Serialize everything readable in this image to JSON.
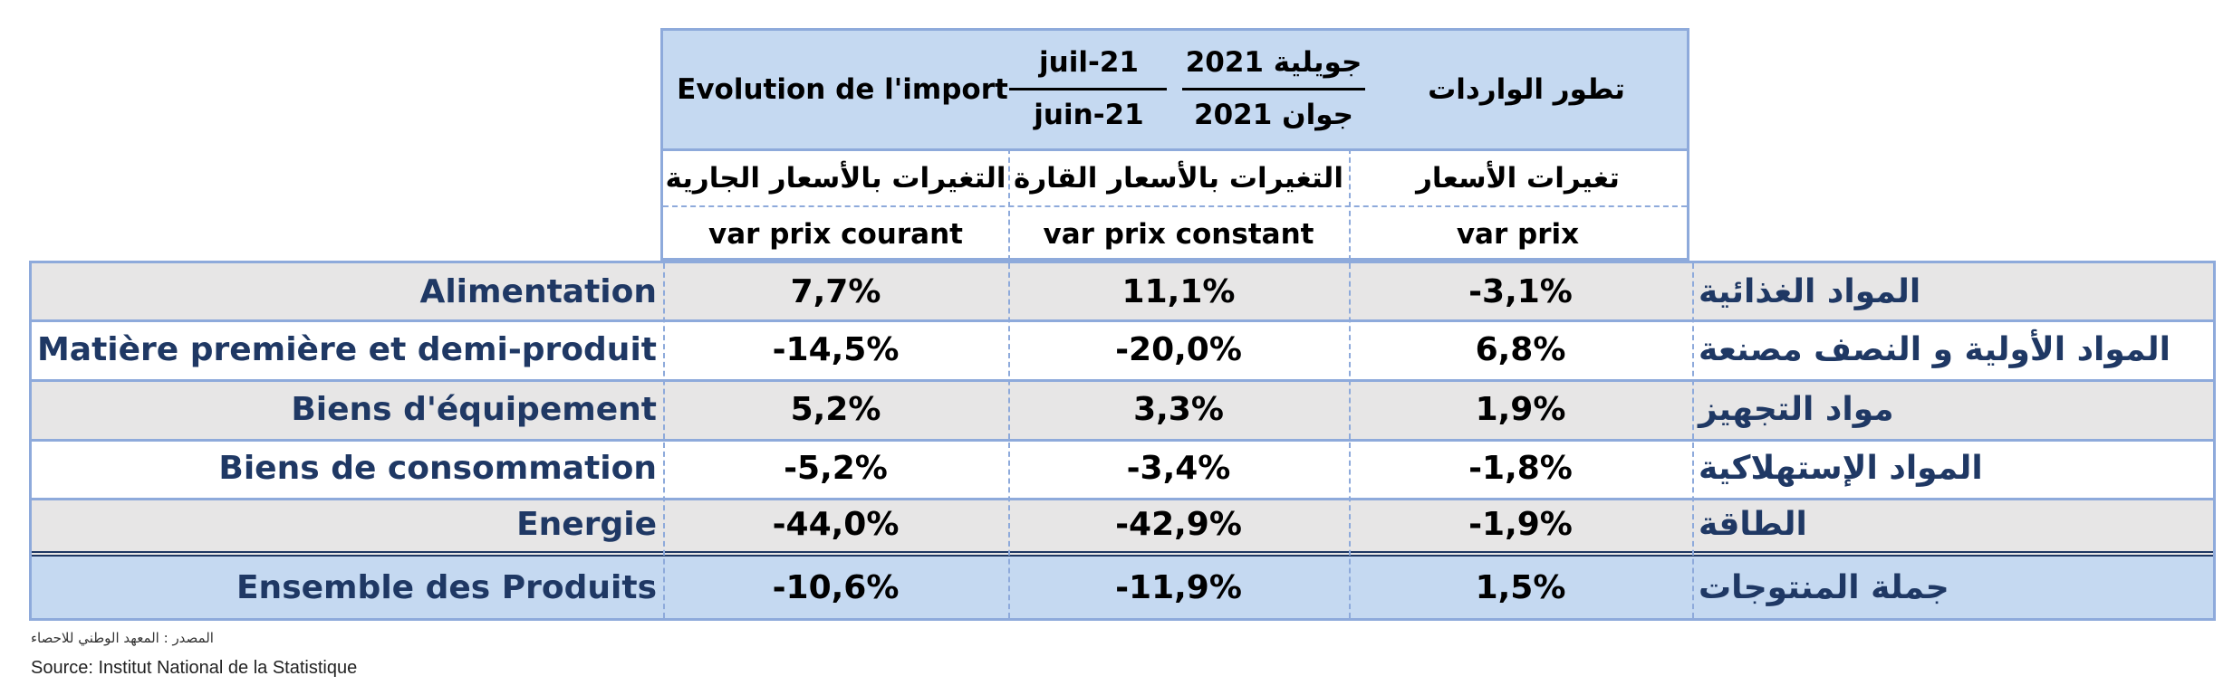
{
  "header": {
    "title_fr": "Evolution de l'import",
    "period_num_fr": "juil-21",
    "period_den_fr": "juin-21",
    "period_num_ar": "جويلية 2021",
    "period_den_ar": "جوان 2021",
    "title_ar": "تطور الواردات",
    "columns": [
      {
        "ar": "التغيرات بالأسعار الجارية",
        "fr": "var prix courant"
      },
      {
        "ar": "التغيرات بالأسعار القارة",
        "fr": "var prix constant"
      },
      {
        "ar": "تغيرات  الأسعار",
        "fr": "var prix"
      }
    ]
  },
  "rows": [
    {
      "fr": "Alimentation",
      "ar": "المواد  الغذائية",
      "courant": "7,7%",
      "constant": "11,1%",
      "prix": "-3,1%"
    },
    {
      "fr": "Matière première et demi-produit",
      "ar": "المواد الأولية و النصف مصنعة",
      "courant": "-14,5%",
      "constant": "-20,0%",
      "prix": "6,8%"
    },
    {
      "fr": "Biens d'équipement",
      "ar": "مواد التجهيز",
      "courant": "5,2%",
      "constant": "3,3%",
      "prix": "1,9%"
    },
    {
      "fr": "Biens de consommation",
      "ar": "المواد الإستهلاكية",
      "courant": "-5,2%",
      "constant": "-3,4%",
      "prix": "-1,8%"
    },
    {
      "fr": "Energie",
      "ar": "الطاقة",
      "courant": "-44,0%",
      "constant": "-42,9%",
      "prix": "-1,9%"
    }
  ],
  "total": {
    "fr": "Ensemble des Produits",
    "ar": "جملة المنتوجات",
    "courant": "-10,6%",
    "constant": "-11,9%",
    "prix": "1,5%"
  },
  "source": {
    "ar": "المصدر : المعهد الوطني للاحصاء",
    "fr": "Source: Institut National de la Statistique"
  },
  "colors": {
    "header_fill": "#c5d9f1",
    "grey_row": "#e7e6e6",
    "border": "#8eaadb",
    "label_text": "#1f3864"
  }
}
